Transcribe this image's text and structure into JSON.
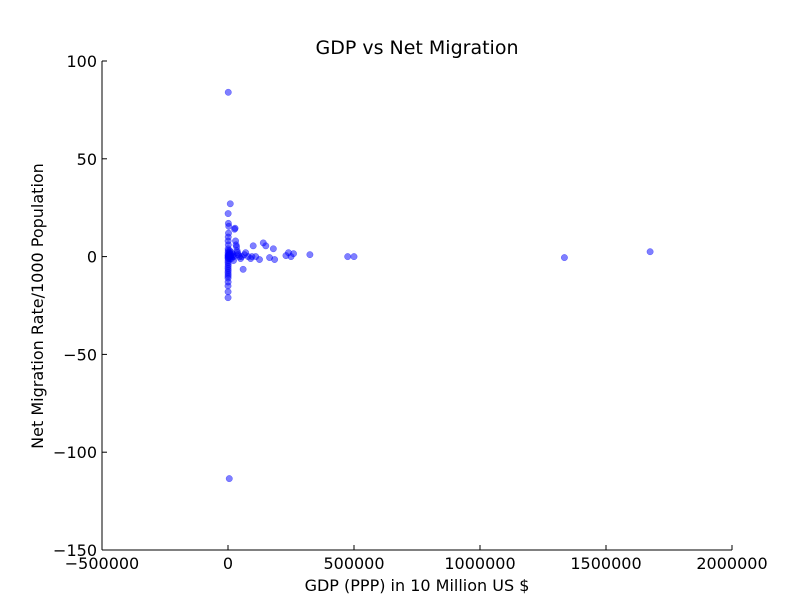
{
  "chart_data": {
    "type": "scatter",
    "title": "GDP vs Net Migration",
    "xlabel": "GDP (PPP) in 10 Million US $",
    "ylabel": "Net Migration Rate/1000 Population",
    "xlim": [
      -500000,
      2000000
    ],
    "ylim": [
      -150,
      100
    ],
    "xticks": [
      -500000,
      0,
      500000,
      1000000,
      1500000,
      2000000
    ],
    "xtick_labels": [
      "−500000",
      "0",
      "500000",
      "1000000",
      "1500000",
      "2000000"
    ],
    "yticks": [
      -150,
      -100,
      -50,
      0,
      50,
      100
    ],
    "ytick_labels": [
      "−150",
      "−100",
      "−50",
      "0",
      "50",
      "100"
    ],
    "grid": false,
    "marker_color": "#0000ff",
    "marker_opacity": 0.5,
    "series": [
      {
        "points": [
          [
            1000,
            84
          ],
          [
            5000,
            -113.5
          ],
          [
            9000,
            27
          ],
          [
            500,
            22
          ],
          [
            1500,
            17
          ],
          [
            3000,
            15.5
          ],
          [
            2000,
            12
          ],
          [
            800,
            10
          ],
          [
            500,
            8
          ],
          [
            1200,
            6
          ],
          [
            600,
            4
          ],
          [
            900,
            3
          ],
          [
            400,
            2
          ],
          [
            700,
            1
          ],
          [
            300,
            0.5
          ],
          [
            1100,
            0
          ],
          [
            200,
            -0.5
          ],
          [
            600,
            -1
          ],
          [
            500,
            -2
          ],
          [
            300,
            -3
          ],
          [
            800,
            -4
          ],
          [
            400,
            -5
          ],
          [
            200,
            -6
          ],
          [
            700,
            -7
          ],
          [
            100,
            -8
          ],
          [
            500,
            -9
          ],
          [
            300,
            -10
          ],
          [
            200,
            -11
          ],
          [
            400,
            -13
          ],
          [
            100,
            -15
          ],
          [
            300,
            -18
          ],
          [
            200,
            -21
          ],
          [
            5000,
            1
          ],
          [
            6000,
            2
          ],
          [
            7000,
            3
          ],
          [
            8000,
            -1
          ],
          [
            10000,
            0
          ],
          [
            12000,
            1
          ],
          [
            14000,
            -1
          ],
          [
            16000,
            2
          ],
          [
            18000,
            0
          ],
          [
            20000,
            1
          ],
          [
            22000,
            -2
          ],
          [
            24000,
            0
          ],
          [
            26000,
            14
          ],
          [
            28000,
            14.5
          ],
          [
            30000,
            8
          ],
          [
            32000,
            6
          ],
          [
            34000,
            5
          ],
          [
            36000,
            3
          ],
          [
            38000,
            2
          ],
          [
            40000,
            1
          ],
          [
            45000,
            0
          ],
          [
            50000,
            -1
          ],
          [
            55000,
            0
          ],
          [
            60000,
            -6.5
          ],
          [
            65000,
            1
          ],
          [
            70000,
            2
          ],
          [
            80000,
            0
          ],
          [
            90000,
            -1
          ],
          [
            95000,
            0
          ],
          [
            100000,
            5.5
          ],
          [
            110000,
            0
          ],
          [
            125000,
            -1.5
          ],
          [
            140000,
            7
          ],
          [
            150000,
            5.5
          ],
          [
            165000,
            -0.5
          ],
          [
            180000,
            4
          ],
          [
            185000,
            -1.5
          ],
          [
            230000,
            0.5
          ],
          [
            240000,
            2
          ],
          [
            250000,
            0
          ],
          [
            260000,
            1.5
          ],
          [
            325000,
            1
          ],
          [
            475000,
            0
          ],
          [
            500000,
            0
          ],
          [
            1335000,
            -0.5
          ],
          [
            1675000,
            2.5
          ]
        ]
      }
    ]
  }
}
